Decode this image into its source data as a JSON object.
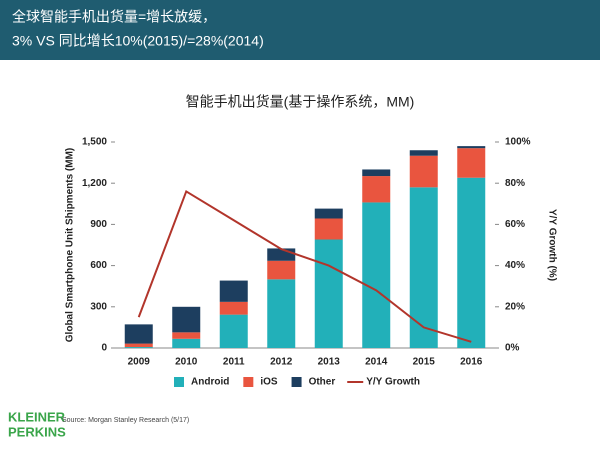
{
  "header": {
    "lines": [
      "全球智能手机出货量=增长放缓，",
      "3% VS 同比增长10%(2015)/=28%(2014)"
    ]
  },
  "chart_data": {
    "type": "bar",
    "stacked": true,
    "title": "智能手机出货量(基于操作系统，MM)",
    "y_label": "Global Smartphone Unit Shipments (MM)",
    "y2_label": "Y/Y Growth (%)",
    "categories": [
      "2009",
      "2010",
      "2011",
      "2012",
      "2013",
      "2014",
      "2015",
      "2016"
    ],
    "series": [
      {
        "name": "Android",
        "color": "#22b0b9",
        "values": [
          7,
          67,
          243,
          500,
          790,
          1060,
          1170,
          1240
        ]
      },
      {
        "name": "iOS",
        "color": "#e9553f",
        "values": [
          25,
          47,
          93,
          135,
          153,
          192,
          230,
          215
        ]
      },
      {
        "name": "Other",
        "color": "#1d3e5f",
        "values": [
          140,
          186,
          155,
          90,
          72,
          48,
          40,
          15
        ]
      },
      {
        "name": "Y/Y Growth",
        "color": "#b2352b",
        "axis": "y2",
        "type": "line",
        "values": [
          15,
          76,
          62,
          48,
          40,
          28,
          10,
          3
        ]
      }
    ],
    "ylim": [
      0,
      1500
    ],
    "yticks": [
      0,
      300,
      600,
      900,
      {
        "value": 1200,
        "label": "1,200"
      },
      {
        "value": 1500,
        "label": "1,500"
      }
    ],
    "y2lim": [
      0,
      100
    ],
    "y2ticks": [
      {
        "value": 0,
        "label": "0%"
      },
      {
        "value": 20,
        "label": "20%"
      },
      {
        "value": 40,
        "label": "40%"
      },
      {
        "value": 60,
        "label": "60%"
      },
      {
        "value": 80,
        "label": "80%"
      },
      {
        "value": 100,
        "label": "100%"
      }
    ],
    "legend": "bottom"
  },
  "footer": {
    "logo": [
      "KLEINER",
      "PERKINS"
    ],
    "source": "Source: Morgan Stanley Research (5/17)"
  }
}
